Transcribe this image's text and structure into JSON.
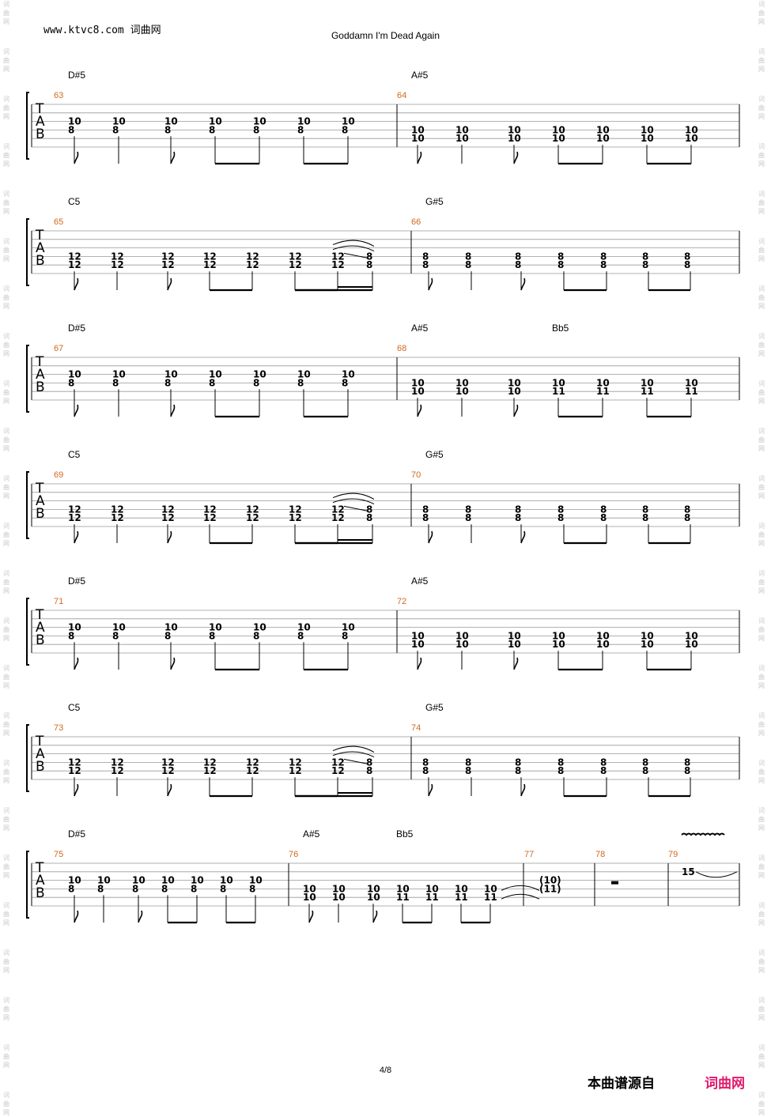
{
  "header": {
    "site": "www.ktvc8.com 词曲网",
    "title": "Goddamn I'm Dead Again"
  },
  "tab_label": [
    "T",
    "A",
    "B"
  ],
  "watermark_char": [
    "词",
    "曲",
    "网"
  ],
  "colors": {
    "measure_number": "#d2691e",
    "brand": "#e0196c",
    "line": "#999999",
    "beam": "#000000"
  },
  "systems": [
    {
      "chords": [
        {
          "name": "D#5",
          "measure": 63,
          "slot": 0
        },
        {
          "name": "A#5",
          "measure": 64,
          "slot": 0
        }
      ],
      "measures": [
        {
          "number": 63,
          "notes": [
            [
              "10",
              "8"
            ],
            [
              "10",
              "8"
            ],
            [
              "10",
              "8"
            ],
            [
              "10",
              "8"
            ],
            [
              "10",
              "8"
            ],
            [
              "10",
              "8"
            ],
            [
              "10",
              "8"
            ]
          ]
        },
        {
          "number": 64,
          "notes": [
            [
              "10",
              "10"
            ],
            [
              "10",
              "10"
            ],
            [
              "10",
              "10"
            ],
            [
              "10",
              "10"
            ],
            [
              "10",
              "10"
            ],
            [
              "10",
              "10"
            ],
            [
              "10",
              "10"
            ]
          ]
        }
      ]
    },
    {
      "chords": [
        {
          "name": "C5",
          "measure": 65,
          "slot": 0
        },
        {
          "name": "G#5",
          "measure": 66,
          "slot": 0
        }
      ],
      "measures": [
        {
          "number": 65,
          "notes": [
            [
              "12",
              "12"
            ],
            [
              "12",
              "12"
            ],
            [
              "12",
              "12"
            ],
            [
              "12",
              "12"
            ],
            [
              "12",
              "12"
            ],
            [
              "12",
              "12"
            ],
            [
              "12",
              "12"
            ],
            [
              "8",
              "8"
            ]
          ]
        },
        {
          "number": 66,
          "notes": [
            [
              "8",
              "8"
            ],
            [
              "8",
              "8"
            ],
            [
              "8",
              "8"
            ],
            [
              "8",
              "8"
            ],
            [
              "8",
              "8"
            ],
            [
              "8",
              "8"
            ],
            [
              "8",
              "8"
            ]
          ]
        }
      ]
    },
    {
      "chords": [
        {
          "name": "D#5",
          "measure": 67,
          "slot": 0
        },
        {
          "name": "A#5",
          "measure": 68,
          "slot": 0
        },
        {
          "name": "Bb5",
          "measure": 68,
          "slot": 3
        }
      ],
      "measures": [
        {
          "number": 67,
          "notes": [
            [
              "10",
              "8"
            ],
            [
              "10",
              "8"
            ],
            [
              "10",
              "8"
            ],
            [
              "10",
              "8"
            ],
            [
              "10",
              "8"
            ],
            [
              "10",
              "8"
            ],
            [
              "10",
              "8"
            ]
          ]
        },
        {
          "number": 68,
          "notes": [
            [
              "10",
              "10"
            ],
            [
              "10",
              "10"
            ],
            [
              "10",
              "10"
            ],
            [
              "10",
              "11"
            ],
            [
              "10",
              "11"
            ],
            [
              "10",
              "11"
            ],
            [
              "10",
              "11"
            ]
          ]
        }
      ]
    },
    {
      "chords": [
        {
          "name": "C5",
          "measure": 69,
          "slot": 0
        },
        {
          "name": "G#5",
          "measure": 70,
          "slot": 0
        }
      ],
      "measures": [
        {
          "number": 69,
          "notes": [
            [
              "12",
              "12"
            ],
            [
              "12",
              "12"
            ],
            [
              "12",
              "12"
            ],
            [
              "12",
              "12"
            ],
            [
              "12",
              "12"
            ],
            [
              "12",
              "12"
            ],
            [
              "12",
              "12"
            ],
            [
              "8",
              "8"
            ]
          ]
        },
        {
          "number": 70,
          "notes": [
            [
              "8",
              "8"
            ],
            [
              "8",
              "8"
            ],
            [
              "8",
              "8"
            ],
            [
              "8",
              "8"
            ],
            [
              "8",
              "8"
            ],
            [
              "8",
              "8"
            ],
            [
              "8",
              "8"
            ]
          ]
        }
      ]
    },
    {
      "chords": [
        {
          "name": "D#5",
          "measure": 71,
          "slot": 0
        },
        {
          "name": "A#5",
          "measure": 72,
          "slot": 0
        }
      ],
      "measures": [
        {
          "number": 71,
          "notes": [
            [
              "10",
              "8"
            ],
            [
              "10",
              "8"
            ],
            [
              "10",
              "8"
            ],
            [
              "10",
              "8"
            ],
            [
              "10",
              "8"
            ],
            [
              "10",
              "8"
            ],
            [
              "10",
              "8"
            ]
          ]
        },
        {
          "number": 72,
          "notes": [
            [
              "10",
              "10"
            ],
            [
              "10",
              "10"
            ],
            [
              "10",
              "10"
            ],
            [
              "10",
              "10"
            ],
            [
              "10",
              "10"
            ],
            [
              "10",
              "10"
            ],
            [
              "10",
              "10"
            ]
          ]
        }
      ]
    },
    {
      "chords": [
        {
          "name": "C5",
          "measure": 73,
          "slot": 0
        },
        {
          "name": "G#5",
          "measure": 74,
          "slot": 0
        }
      ],
      "measures": [
        {
          "number": 73,
          "notes": [
            [
              "12",
              "12"
            ],
            [
              "12",
              "12"
            ],
            [
              "12",
              "12"
            ],
            [
              "12",
              "12"
            ],
            [
              "12",
              "12"
            ],
            [
              "12",
              "12"
            ],
            [
              "12",
              "12"
            ],
            [
              "8",
              "8"
            ]
          ]
        },
        {
          "number": 74,
          "notes": [
            [
              "8",
              "8"
            ],
            [
              "8",
              "8"
            ],
            [
              "8",
              "8"
            ],
            [
              "8",
              "8"
            ],
            [
              "8",
              "8"
            ],
            [
              "8",
              "8"
            ],
            [
              "8",
              "8"
            ]
          ]
        }
      ]
    },
    {
      "chords": [
        {
          "name": "D#5",
          "measure": 75,
          "slot": 0
        },
        {
          "name": "A#5",
          "measure": 76,
          "slot": 0
        },
        {
          "name": "Bb5",
          "measure": 76,
          "slot": 3
        }
      ],
      "measures": [
        {
          "number": 75,
          "notes": [
            [
              "10",
              "8"
            ],
            [
              "10",
              "8"
            ],
            [
              "10",
              "8"
            ],
            [
              "10",
              "8"
            ],
            [
              "10",
              "8"
            ],
            [
              "10",
              "8"
            ],
            [
              "10",
              "8"
            ]
          ]
        },
        {
          "number": 76,
          "notes": [
            [
              "10",
              "10"
            ],
            [
              "10",
              "10"
            ],
            [
              "10",
              "10"
            ],
            [
              "10",
              "11"
            ],
            [
              "10",
              "11"
            ],
            [
              "10",
              "11"
            ],
            [
              "10",
              "11"
            ]
          ]
        },
        {
          "number": 77,
          "notes": [
            [
              "(10)",
              "(11)"
            ]
          ]
        },
        {
          "number": 78,
          "rest": true
        },
        {
          "number": 79,
          "notes": [
            [
              "15"
            ]
          ],
          "vibrato": true
        }
      ]
    }
  ],
  "footer": {
    "page": "4/8",
    "source": "本曲谱源自",
    "brand": "词曲网"
  }
}
